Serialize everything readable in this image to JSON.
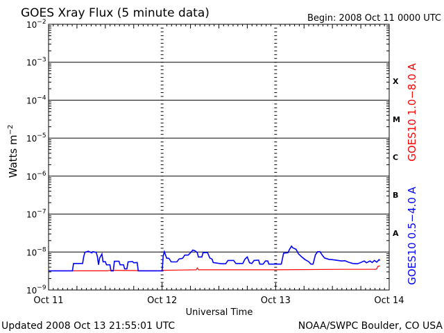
{
  "chart_data": {
    "type": "line",
    "title": "GOES Xray Flux (5 minute data)",
    "begin_label": "Begin:  2008 Oct 11 0000 UTC",
    "xlabel": "Universal Time",
    "ylabel_text": "Watts m",
    "ylabel_sup": "−2",
    "x_unit": "days since Oct 11 0000 UTC",
    "xlim": [
      0,
      3
    ],
    "x_ticks": [
      {
        "pos": 0,
        "label": "Oct 11"
      },
      {
        "pos": 1,
        "label": "Oct 12"
      },
      {
        "pos": 2,
        "label": "Oct 13"
      },
      {
        "pos": 3,
        "label": "Oct 14"
      }
    ],
    "y_scale": "log",
    "ylim": [
      1e-09,
      0.01
    ],
    "y_ticks": [
      {
        "exp": -2,
        "label": "10",
        "sup": "−2"
      },
      {
        "exp": -3,
        "label": "10",
        "sup": "−3"
      },
      {
        "exp": -4,
        "label": "10",
        "sup": "−4"
      },
      {
        "exp": -5,
        "label": "10",
        "sup": "−5"
      },
      {
        "exp": -6,
        "label": "10",
        "sup": "−6"
      },
      {
        "exp": -7,
        "label": "10",
        "sup": "−7"
      },
      {
        "exp": -8,
        "label": "10",
        "sup": "−8"
      },
      {
        "exp": -9,
        "label": "10",
        "sup": "−9"
      }
    ],
    "flare_classes": [
      {
        "label": "X",
        "exp": -3.5
      },
      {
        "label": "M",
        "exp": -4.5
      },
      {
        "label": "C",
        "exp": -5.5
      },
      {
        "label": "B",
        "exp": -6.5
      },
      {
        "label": "A",
        "exp": -7.5
      }
    ],
    "colors": {
      "long": "#ff0000",
      "short": "#0000ff",
      "axes": "#000000"
    },
    "series": [
      {
        "name": "GOES10 1.0−8.0 A",
        "color": "#ff0000",
        "points": [
          [
            0.0,
            3.2e-09
          ],
          [
            0.52,
            3.2e-09
          ],
          [
            0.54,
            3.3e-09
          ],
          [
            0.98,
            3.2e-09
          ],
          [
            1.0,
            3.3e-09
          ],
          [
            1.3,
            3.4e-09
          ],
          [
            1.31,
            3.8e-09
          ],
          [
            1.32,
            3.4e-09
          ],
          [
            2.0,
            3.4e-09
          ],
          [
            2.6,
            3.5e-09
          ],
          [
            2.88,
            3.5e-09
          ],
          [
            2.89,
            3.6e-09
          ],
          [
            2.9,
            4.2e-09
          ],
          [
            2.92,
            4.3e-09
          ]
        ]
      },
      {
        "name": "GOES10 0.5−4.0 A",
        "color": "#0000ff",
        "points": [
          [
            0.0,
            3.2e-09
          ],
          [
            0.21,
            3.2e-09
          ],
          [
            0.22,
            5e-09
          ],
          [
            0.3,
            5e-09
          ],
          [
            0.31,
            7.6e-09
          ],
          [
            0.32,
            9.8e-09
          ],
          [
            0.35,
            1.05e-08
          ],
          [
            0.38,
            9.5e-09
          ],
          [
            0.39,
            1.02e-08
          ],
          [
            0.42,
            9.8e-09
          ],
          [
            0.43,
            7.6e-09
          ],
          [
            0.44,
            4.6e-09
          ],
          [
            0.45,
            6.9e-09
          ],
          [
            0.47,
            8.9e-09
          ],
          [
            0.48,
            5.5e-09
          ],
          [
            0.5,
            5.6e-09
          ],
          [
            0.51,
            4.6e-09
          ],
          [
            0.54,
            4.6e-09
          ],
          [
            0.55,
            3.2e-09
          ],
          [
            0.57,
            3.2e-09
          ],
          [
            0.58,
            5.7e-09
          ],
          [
            0.62,
            5.7e-09
          ],
          [
            0.63,
            4.6e-09
          ],
          [
            0.66,
            4.6e-09
          ],
          [
            0.67,
            3.6e-09
          ],
          [
            0.69,
            3.6e-09
          ],
          [
            0.7,
            5.5e-09
          ],
          [
            0.74,
            5.6e-09
          ],
          [
            0.75,
            5.2e-09
          ],
          [
            0.78,
            5.3e-09
          ],
          [
            0.79,
            3.2e-09
          ],
          [
            1.0,
            3.2e-09
          ],
          [
            1.01,
            8e-09
          ],
          [
            1.02,
            1.02e-08
          ],
          [
            1.04,
            6.9e-09
          ],
          [
            1.06,
            6.8e-09
          ],
          [
            1.08,
            5.5e-09
          ],
          [
            1.13,
            5.5e-09
          ],
          [
            1.15,
            6.6e-09
          ],
          [
            1.18,
            6.8e-09
          ],
          [
            1.2,
            8.3e-09
          ],
          [
            1.23,
            8.3e-09
          ],
          [
            1.25,
            9.6e-09
          ],
          [
            1.27,
            1.13e-08
          ],
          [
            1.29,
            1.08e-08
          ],
          [
            1.31,
            9.6e-09
          ],
          [
            1.32,
            7.4e-09
          ],
          [
            1.35,
            7.4e-09
          ],
          [
            1.36,
            9.6e-09
          ],
          [
            1.4,
            9.7e-09
          ],
          [
            1.42,
            7e-09
          ],
          [
            1.44,
            6.5e-09
          ],
          [
            1.45,
            5.3e-09
          ],
          [
            1.52,
            4.9e-09
          ],
          [
            1.56,
            4.9e-09
          ],
          [
            1.58,
            6e-09
          ],
          [
            1.63,
            6e-09
          ],
          [
            1.65,
            5e-09
          ],
          [
            1.71,
            5e-09
          ],
          [
            1.73,
            6.5e-09
          ],
          [
            1.75,
            7.4e-09
          ],
          [
            1.77,
            5.2e-09
          ],
          [
            1.79,
            5e-09
          ],
          [
            1.81,
            6e-09
          ],
          [
            1.85,
            6.1e-09
          ],
          [
            1.86,
            4.8e-09
          ],
          [
            1.89,
            4.8e-09
          ],
          [
            1.91,
            5.8e-09
          ],
          [
            1.93,
            5.8e-09
          ],
          [
            1.94,
            4.8e-09
          ],
          [
            2.0,
            4.8e-09
          ],
          [
            2.05,
            4.8e-09
          ],
          [
            2.07,
            9.3e-09
          ],
          [
            2.11,
            9.6e-09
          ],
          [
            2.12,
            1.15e-08
          ],
          [
            2.14,
            1.43e-08
          ],
          [
            2.15,
            1.3e-08
          ],
          [
            2.18,
            1.18e-08
          ],
          [
            2.2,
            9e-09
          ],
          [
            2.23,
            7.4e-09
          ],
          [
            2.26,
            6.3e-09
          ],
          [
            2.29,
            5.6e-09
          ],
          [
            2.31,
            4.8e-09
          ],
          [
            2.33,
            4.8e-09
          ],
          [
            2.35,
            8.4e-09
          ],
          [
            2.37,
            1.02e-08
          ],
          [
            2.39,
            1.02e-08
          ],
          [
            2.41,
            8.3e-09
          ],
          [
            2.43,
            7e-09
          ],
          [
            2.47,
            6.4e-09
          ],
          [
            2.5,
            6.3e-09
          ],
          [
            2.55,
            6e-09
          ],
          [
            2.58,
            5.8e-09
          ],
          [
            2.61,
            5.9e-09
          ],
          [
            2.64,
            5.4e-09
          ],
          [
            2.68,
            5e-09
          ],
          [
            2.72,
            4.9e-09
          ],
          [
            2.75,
            5.3e-09
          ],
          [
            2.78,
            5.8e-09
          ],
          [
            2.8,
            5.2e-09
          ],
          [
            2.83,
            5.8e-09
          ],
          [
            2.85,
            5.3e-09
          ],
          [
            2.87,
            6e-09
          ],
          [
            2.89,
            5.4e-09
          ],
          [
            2.91,
            6.3e-09
          ],
          [
            2.92,
            6e-09
          ]
        ]
      }
    ],
    "footer_left": "Updated 2008 Oct 13 21:55:01 UTC",
    "footer_right": "NOAA/SWPC Boulder, CO USA",
    "legend_placement": "right-vertical"
  }
}
